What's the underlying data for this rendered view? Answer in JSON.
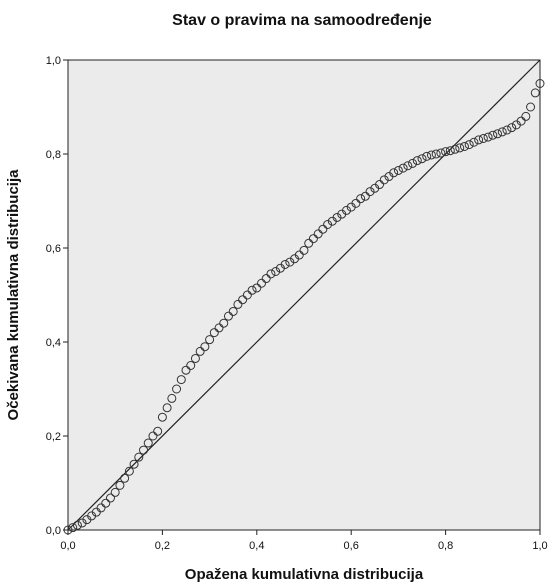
{
  "chart_data": {
    "type": "scatter",
    "title": "Stav o pravima na samoodređenje",
    "xlabel": "Opažena kumulativna distribucija",
    "ylabel": "Očekivana kumulativna distribucija",
    "xlim": [
      0,
      1
    ],
    "ylim": [
      0,
      1
    ],
    "x_ticks": [
      "0,0",
      "0,2",
      "0,4",
      "0,6",
      "0,8",
      "1,0"
    ],
    "y_ticks": [
      "0,0",
      "0,2",
      "0,4",
      "0,6",
      "0,8",
      "1,0"
    ],
    "grid": false,
    "plot_background": "#ebebeb",
    "marker_color": "#333333",
    "reference_line": {
      "from": [
        0,
        0
      ],
      "to": [
        1,
        1
      ]
    },
    "series": [
      {
        "x": [
          0.0,
          0.01,
          0.02,
          0.03,
          0.04,
          0.05,
          0.06,
          0.07,
          0.08,
          0.09,
          0.1,
          0.11,
          0.12,
          0.13,
          0.14,
          0.15,
          0.16,
          0.17,
          0.18,
          0.19,
          0.2,
          0.21,
          0.22,
          0.23,
          0.24,
          0.25,
          0.26,
          0.27,
          0.28,
          0.29,
          0.3,
          0.31,
          0.32,
          0.33,
          0.34,
          0.35,
          0.36,
          0.37,
          0.38,
          0.39,
          0.4,
          0.41,
          0.42,
          0.43,
          0.44,
          0.45,
          0.46,
          0.47,
          0.48,
          0.49,
          0.5,
          0.51,
          0.52,
          0.53,
          0.54,
          0.55,
          0.56,
          0.57,
          0.58,
          0.59,
          0.6,
          0.61,
          0.62,
          0.63,
          0.64,
          0.65,
          0.66,
          0.67,
          0.68,
          0.69,
          0.7,
          0.71,
          0.72,
          0.73,
          0.74,
          0.75,
          0.76,
          0.77,
          0.78,
          0.79,
          0.8,
          0.81,
          0.82,
          0.83,
          0.84,
          0.85,
          0.86,
          0.87,
          0.88,
          0.89,
          0.9,
          0.91,
          0.92,
          0.93,
          0.94,
          0.95,
          0.96,
          0.97,
          0.98,
          0.99,
          1.0
        ],
        "y": [
          0.0,
          0.005,
          0.01,
          0.015,
          0.022,
          0.03,
          0.038,
          0.047,
          0.057,
          0.068,
          0.08,
          0.095,
          0.11,
          0.125,
          0.14,
          0.155,
          0.17,
          0.185,
          0.2,
          0.21,
          0.24,
          0.26,
          0.28,
          0.3,
          0.32,
          0.34,
          0.35,
          0.365,
          0.38,
          0.39,
          0.405,
          0.42,
          0.43,
          0.44,
          0.455,
          0.465,
          0.48,
          0.49,
          0.5,
          0.51,
          0.515,
          0.525,
          0.535,
          0.545,
          0.55,
          0.557,
          0.565,
          0.57,
          0.577,
          0.585,
          0.595,
          0.61,
          0.62,
          0.63,
          0.64,
          0.65,
          0.657,
          0.665,
          0.672,
          0.68,
          0.687,
          0.695,
          0.705,
          0.71,
          0.72,
          0.727,
          0.735,
          0.745,
          0.752,
          0.76,
          0.765,
          0.77,
          0.775,
          0.78,
          0.786,
          0.79,
          0.795,
          0.798,
          0.8,
          0.802,
          0.805,
          0.807,
          0.81,
          0.813,
          0.816,
          0.82,
          0.825,
          0.83,
          0.833,
          0.836,
          0.84,
          0.843,
          0.847,
          0.851,
          0.856,
          0.862,
          0.87,
          0.88,
          0.9,
          0.93,
          0.95
        ]
      }
    ]
  }
}
